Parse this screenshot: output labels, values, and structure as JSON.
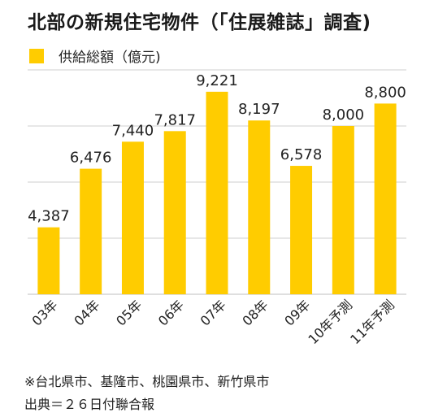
{
  "title": "北部の新規住宅物件（「住展雑誌」調査)",
  "legend": {
    "label": "供給総額（億元)",
    "color": "#ffcc00"
  },
  "notes": [
    "※台北県市、基隆市、桃園県市、新竹県市",
    "出典＝２６日付聯合報"
  ],
  "chart_data": {
    "type": "bar",
    "title": "北部の新規住宅物件（「住展雑誌」調査)",
    "xlabel": "",
    "ylabel": "",
    "categories": [
      "03年",
      "04年",
      "05年",
      "06年",
      "07年",
      "08年",
      "09年",
      "10年予測",
      "11年予測"
    ],
    "series": [
      {
        "name": "供給総額（億元)",
        "values": [
          4387,
          6476,
          7440,
          7817,
          9221,
          8197,
          6578,
          8000,
          8800
        ],
        "labels": [
          "4,387",
          "6,476",
          "7,440",
          "7,817",
          "9,221",
          "8,197",
          "6,578",
          "8,000",
          "8,800"
        ],
        "color": "#ffcc00"
      }
    ],
    "ylim": [
      2000,
      10000
    ],
    "grid": true,
    "legend_position": "top-left"
  }
}
